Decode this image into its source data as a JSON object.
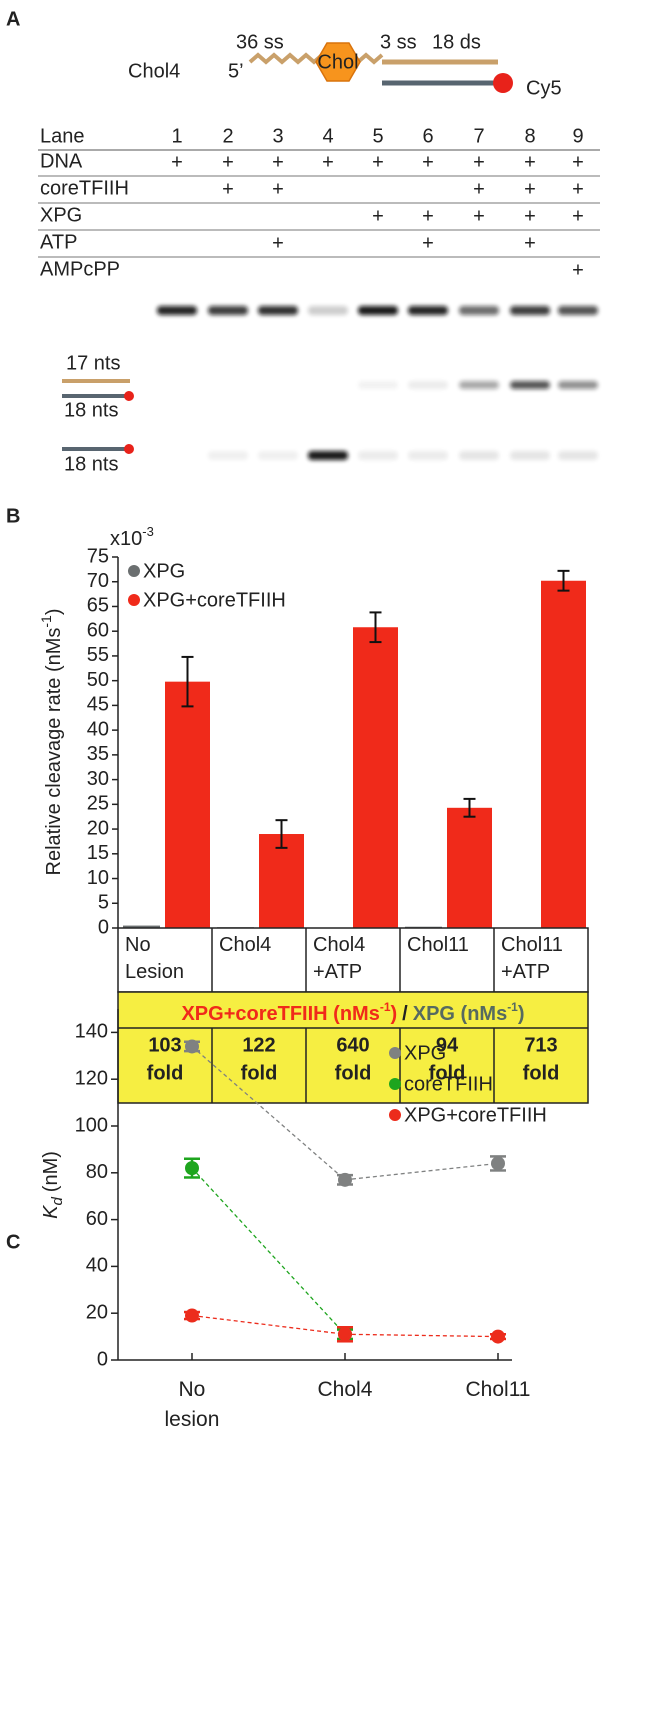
{
  "panel_labels": {
    "a": "A",
    "b": "B",
    "c": "C"
  },
  "diagram": {
    "name": "Chol4",
    "five_prime": "5’",
    "ss1": "36 ss",
    "chol": "Chol",
    "ss2": "3 ss",
    "ds": "18 ds",
    "dye": "Cy5"
  },
  "gel": {
    "lane_header": "Lane",
    "lanes": [
      1,
      2,
      3,
      4,
      5,
      6,
      7,
      8,
      9
    ],
    "rows": [
      {
        "label": "DNA",
        "marks": [
          "+",
          "+",
          "+",
          "+",
          "+",
          "+",
          "+",
          "+",
          "+"
        ]
      },
      {
        "label": "coreTFIIH",
        "marks": [
          null,
          "+",
          "+",
          null,
          null,
          null,
          "+",
          "+",
          "+"
        ]
      },
      {
        "label": "XPG",
        "marks": [
          null,
          null,
          null,
          null,
          "+",
          "+",
          "+",
          "+",
          "+"
        ]
      },
      {
        "label": "ATP",
        "marks": [
          null,
          null,
          "+",
          null,
          null,
          "+",
          null,
          "+",
          null
        ]
      },
      {
        "label": "AMPcPP",
        "marks": [
          null,
          null,
          null,
          null,
          null,
          null,
          null,
          null,
          "+"
        ]
      }
    ],
    "markers": [
      "17 nts",
      "18 nts",
      "18 nts"
    ]
  },
  "chart_data": [
    {
      "type": "bar",
      "y_multiplier": "x10",
      "y_multiplier_exp": "-3",
      "ylabel": "Relative cleavage rate (nMs",
      "ylabel_exp": "-1",
      "ylabel_close": ")",
      "categories": [
        "No Lesion",
        "Chol4",
        "Chol4 +ATP",
        "Chol11",
        "Chol11 +ATP"
      ],
      "series": [
        {
          "name": "XPG",
          "color": "#6b6f70",
          "values": [
            0.49,
            0.16,
            0.1,
            0.26,
            0.1
          ]
        },
        {
          "name": "XPG+coreTFIIH",
          "color": "#f02a1a",
          "values": [
            49.8,
            19,
            60.8,
            24.3,
            70.2
          ],
          "errors": [
            5,
            2.8,
            3,
            1.8,
            2
          ]
        }
      ],
      "ylim": [
        0,
        75
      ],
      "yticks": [
        0,
        5,
        10,
        15,
        20,
        25,
        30,
        35,
        40,
        45,
        50,
        55,
        60,
        65,
        70,
        75
      ],
      "legend": "upper left"
    },
    {
      "type": "line",
      "ylabel_symbol": "K",
      "ylabel_sub": "d",
      "ylabel_unit": "(nM)",
      "categories": [
        "No lesion",
        "Chol4",
        "Chol11"
      ],
      "series": [
        {
          "name": "XPG",
          "color": "#7f8181",
          "values": [
            134,
            77,
            84
          ],
          "errors": [
            2,
            2,
            3
          ]
        },
        {
          "name": "coreTFIIH",
          "color": "#1ea51e",
          "values": [
            82,
            11,
            null
          ],
          "errors": [
            4,
            2,
            null
          ]
        },
        {
          "name": "XPG+coreTFIIH",
          "color": "#ec2c1c",
          "values": [
            19,
            11,
            10
          ],
          "errors": [
            1.5,
            3,
            1
          ]
        }
      ],
      "ylim": [
        0,
        150
      ],
      "yticks": [
        0,
        20,
        40,
        60,
        80,
        100,
        120,
        140
      ],
      "legend": "upper right",
      "line_style": "dashed"
    }
  ],
  "fold_table": {
    "numerator": "XPG+coreTFIIH (nMs",
    "numerator_color": "#f02a1a",
    "exp": "-1",
    "close": ")",
    "divider": "/",
    "denominator": "XPG (nMs",
    "denominator_color": "#566a60",
    "values": [
      103,
      122,
      640,
      94,
      713
    ],
    "unit": "fold"
  }
}
